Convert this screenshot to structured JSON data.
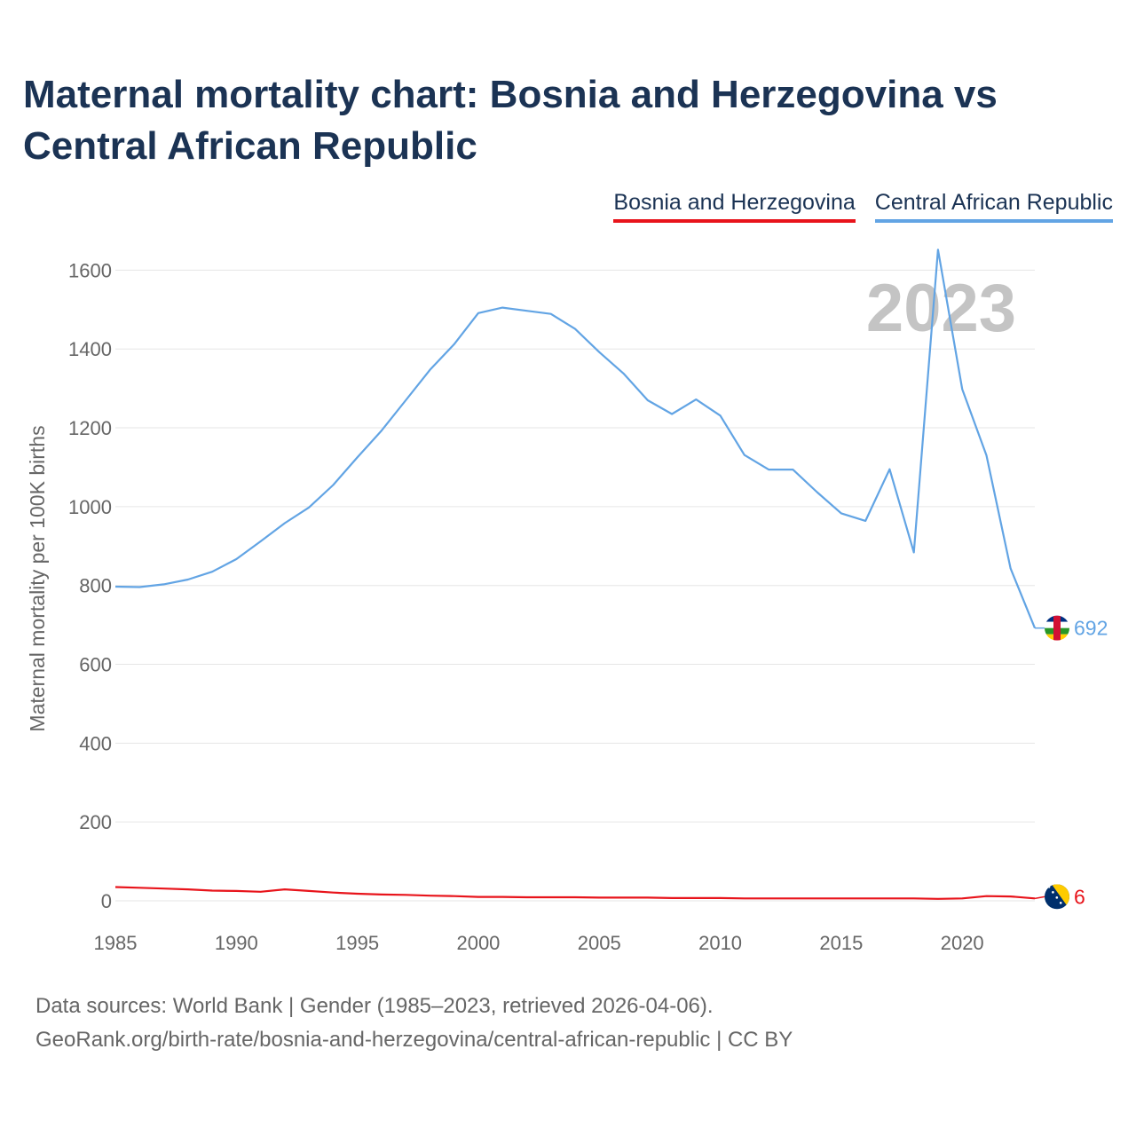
{
  "title": "Maternal mortality chart: Bosnia and Herzegovina vs Central African Republic",
  "legend": {
    "bih": "Bosnia and Herzegovina",
    "car": "Central African Republic"
  },
  "colors": {
    "bih": "#e8141b",
    "car": "#62a4e4",
    "grid": "#e6e6e6",
    "axis_text": "#666666",
    "year_watermark": "#c4c4c4"
  },
  "footer": {
    "line1": "Data sources: World Bank | Gender (1985–2023, retrieved 2026-04-06).",
    "line2": "GeoRank.org/birth-rate/bosnia-and-herzegovina/central-african-republic | CC BY"
  },
  "chart_data": {
    "type": "line",
    "title": "Maternal mortality chart: Bosnia and Herzegovina vs Central African Republic",
    "ylabel": "Maternal mortality per 100K births",
    "xlabel": "",
    "year_label": "2023",
    "xlim": [
      1985,
      2023
    ],
    "ylim": [
      0,
      1700
    ],
    "x_ticks": [
      1985,
      1990,
      1995,
      2000,
      2005,
      2010,
      2015,
      2020
    ],
    "y_ticks": [
      0,
      200,
      400,
      600,
      800,
      1000,
      1200,
      1400,
      1600
    ],
    "x": [
      1985,
      1986,
      1987,
      1988,
      1989,
      1990,
      1991,
      1992,
      1993,
      1994,
      1995,
      1996,
      1997,
      1998,
      1999,
      2000,
      2001,
      2002,
      2003,
      2004,
      2005,
      2006,
      2007,
      2008,
      2009,
      2010,
      2011,
      2012,
      2013,
      2014,
      2015,
      2016,
      2017,
      2018,
      2019,
      2020,
      2021,
      2022,
      2023
    ],
    "series": [
      {
        "name": "Bosnia and Herzegovina",
        "key": "bih",
        "end_label": "6",
        "values": [
          35,
          33,
          31,
          29,
          26,
          25,
          23,
          29,
          25,
          21,
          18,
          16,
          15,
          13,
          12,
          10,
          10,
          9,
          9,
          9,
          8,
          8,
          8,
          7,
          7,
          7,
          6,
          6,
          6,
          6,
          6,
          6,
          6,
          6,
          5,
          6,
          12,
          11,
          6
        ]
      },
      {
        "name": "Central African Republic",
        "key": "car",
        "end_label": "692",
        "values": [
          797,
          796,
          803,
          815,
          835,
          867,
          912,
          958,
          998,
          1055,
          1125,
          1193,
          1270,
          1347,
          1412,
          1491,
          1505,
          1497,
          1489,
          1451,
          1392,
          1338,
          1270,
          1235,
          1272,
          1231,
          1131,
          1094,
          1094,
          1037,
          983,
          964,
          1095,
          884,
          1652,
          1298,
          1130,
          843,
          692
        ]
      }
    ]
  }
}
